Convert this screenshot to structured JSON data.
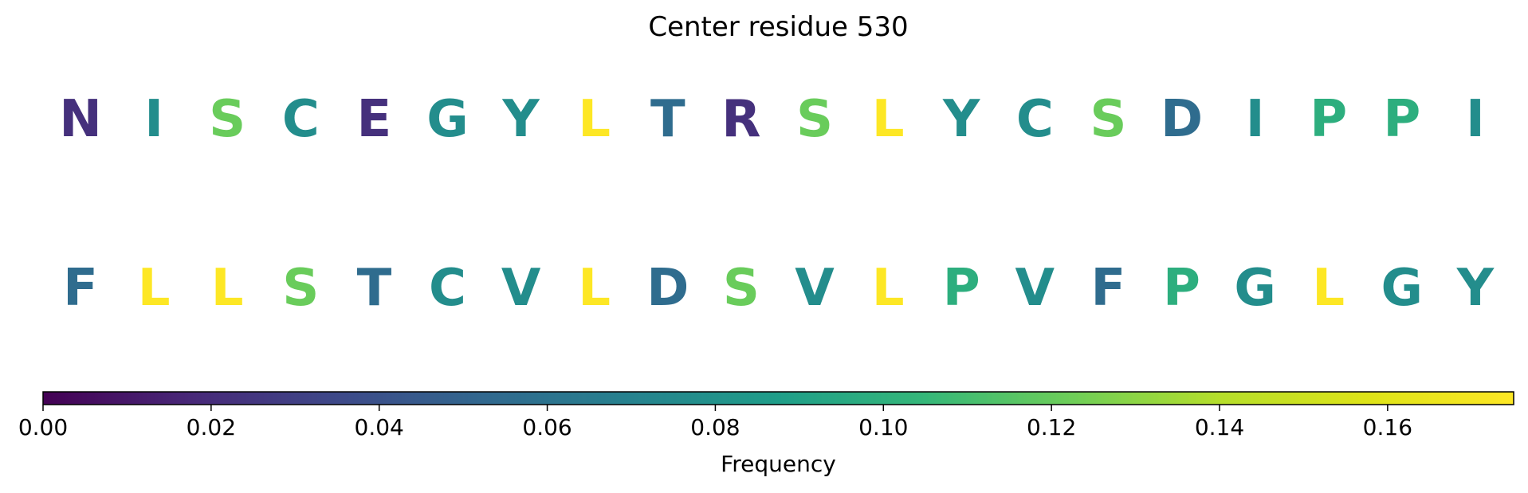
{
  "chart_data": {
    "type": "heatmap",
    "title": "Center residue 530",
    "rows": [
      {
        "letters": [
          "N",
          "I",
          "S",
          "C",
          "E",
          "G",
          "Y",
          "L",
          "T",
          "R",
          "S",
          "L",
          "Y",
          "C",
          "S",
          "D",
          "I",
          "P",
          "P",
          "I"
        ],
        "frequencies": [
          0.022,
          0.077,
          0.121,
          0.077,
          0.022,
          0.077,
          0.077,
          0.175,
          0.055,
          0.022,
          0.121,
          0.175,
          0.077,
          0.077,
          0.121,
          0.055,
          0.077,
          0.099,
          0.099,
          0.077
        ]
      },
      {
        "letters": [
          "F",
          "L",
          "L",
          "S",
          "T",
          "C",
          "V",
          "L",
          "D",
          "S",
          "V",
          "L",
          "P",
          "V",
          "F",
          "P",
          "G",
          "L",
          "G",
          "Y"
        ],
        "frequencies": [
          0.055,
          0.175,
          0.175,
          0.121,
          0.055,
          0.077,
          0.077,
          0.175,
          0.055,
          0.121,
          0.077,
          0.175,
          0.099,
          0.077,
          0.055,
          0.099,
          0.077,
          0.175,
          0.077,
          0.077
        ]
      }
    ],
    "colorbar": {
      "colormap": "viridis",
      "range": [
        0.0,
        0.175
      ],
      "ticks": [
        "0.00",
        "0.02",
        "0.04",
        "0.06",
        "0.08",
        "0.10",
        "0.12",
        "0.14",
        "0.16"
      ],
      "tick_values": [
        0.0,
        0.02,
        0.04,
        0.06,
        0.08,
        0.1,
        0.12,
        0.14,
        0.16
      ],
      "label": "Frequency",
      "orientation": "horizontal",
      "placement": "bottom"
    }
  }
}
